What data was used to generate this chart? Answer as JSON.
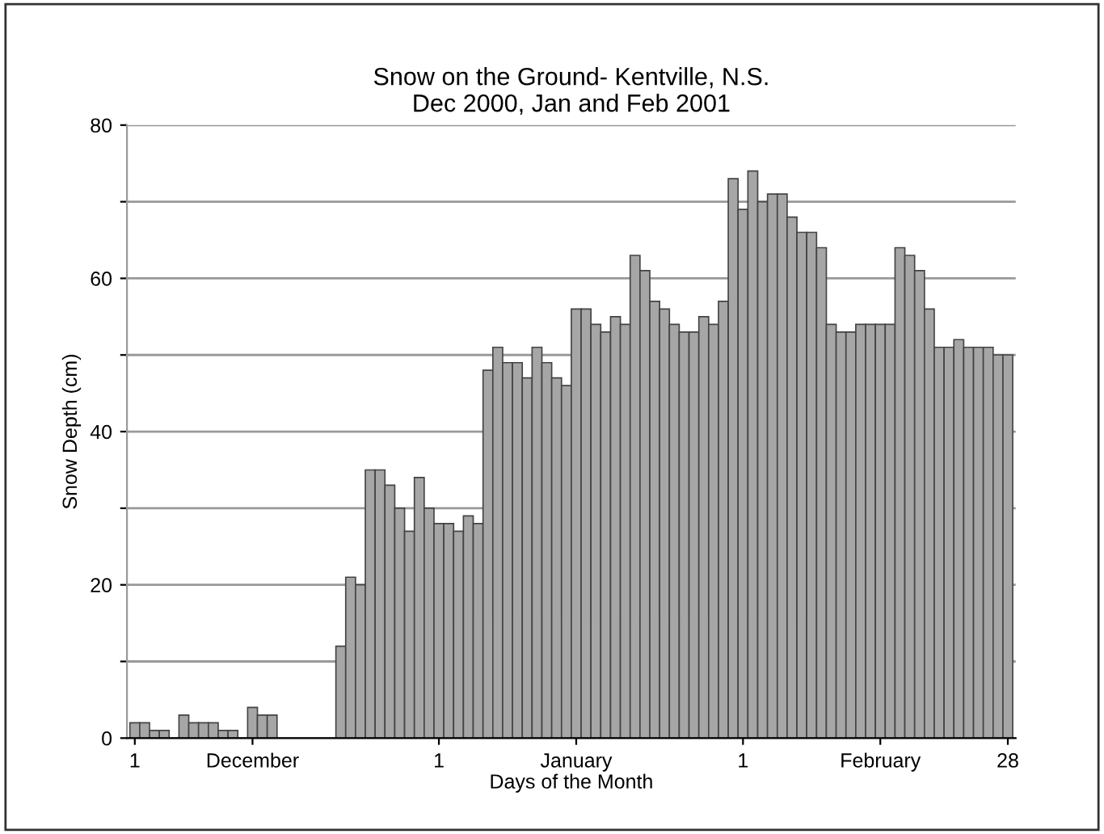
{
  "chart_data": {
    "type": "bar",
    "title": "Snow on the Ground- Kentville, N.S.\nDec 2000, Jan and Feb 2001",
    "xlabel": "Days of the Month",
    "ylabel": "Snow Depth (cm)",
    "categories": [
      "1",
      null,
      null,
      null,
      null,
      null,
      null,
      null,
      null,
      null,
      null,
      null,
      "December",
      null,
      null,
      null,
      null,
      null,
      null,
      null,
      null,
      null,
      null,
      null,
      null,
      null,
      null,
      null,
      null,
      null,
      null,
      "1",
      null,
      null,
      null,
      null,
      null,
      null,
      null,
      null,
      null,
      null,
      null,
      null,
      null,
      "January",
      null,
      null,
      null,
      null,
      null,
      null,
      null,
      null,
      null,
      null,
      null,
      null,
      null,
      null,
      null,
      null,
      "1",
      null,
      null,
      null,
      null,
      null,
      null,
      null,
      null,
      null,
      null,
      null,
      null,
      null,
      "February",
      null,
      null,
      null,
      null,
      null,
      null,
      null,
      null,
      null,
      null,
      null,
      null,
      "28"
    ],
    "values": [
      2,
      2,
      1,
      1,
      0,
      3,
      2,
      2,
      2,
      1,
      1,
      0,
      4,
      3,
      3,
      0,
      0,
      0,
      0,
      0,
      0,
      12,
      21,
      20,
      35,
      35,
      33,
      30,
      27,
      34,
      30,
      28,
      28,
      27,
      29,
      28,
      48,
      51,
      49,
      49,
      47,
      51,
      49,
      47,
      46,
      56,
      56,
      54,
      53,
      55,
      54,
      63,
      61,
      57,
      56,
      54,
      53,
      53,
      55,
      54,
      57,
      73,
      69,
      74,
      70,
      71,
      71,
      68,
      66,
      66,
      64,
      54,
      53,
      53,
      54,
      54,
      54,
      54,
      64,
      63,
      61,
      56,
      51,
      51,
      52,
      51,
      51,
      51,
      50,
      50
    ],
    "color": "#a6a6a6",
    "ylim": [
      0,
      80
    ],
    "yticks": [
      0,
      {
        "value": 10,
        "label": null
      },
      20,
      {
        "value": 30,
        "label": null
      },
      40,
      {
        "value": 50,
        "label": null
      },
      60,
      {
        "value": 70,
        "label": null
      },
      80
    ],
    "grid": "y"
  }
}
